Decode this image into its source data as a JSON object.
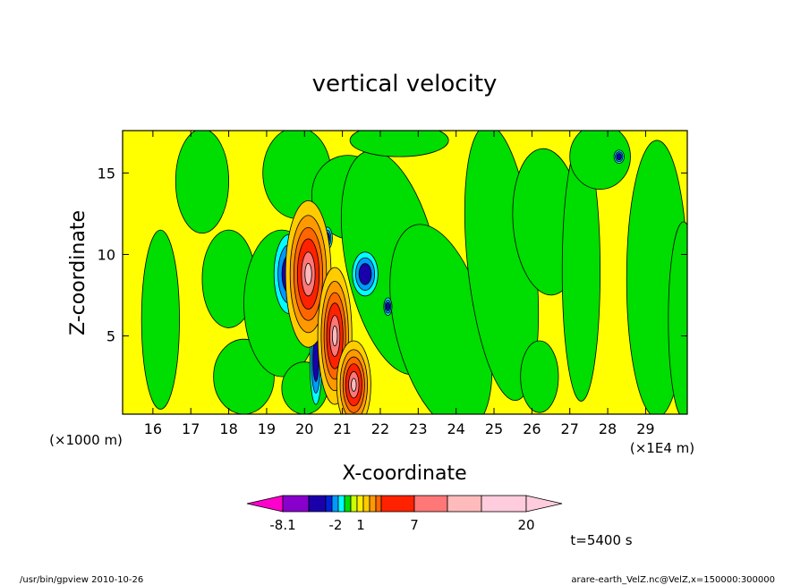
{
  "chart_data": {
    "type": "heatmap",
    "title": "vertical velocity",
    "xlabel": "X-coordinate",
    "ylabel": "Z-coordinate",
    "x_units_left": "(×1000 m)",
    "x_units_right": "(×1E4 m)",
    "xlim": [
      15.2,
      30.1
    ],
    "ylim": [
      0.2,
      17.6
    ],
    "x_ticks": [
      16,
      17,
      18,
      19,
      20,
      21,
      22,
      23,
      24,
      25,
      26,
      27,
      28,
      29
    ],
    "y_ticks": [
      5,
      10,
      15
    ],
    "background_color": "#ffff00",
    "features": [
      {
        "type": "green",
        "x": 16.2,
        "y": 6.0,
        "rx": 0.5,
        "ry": 5.5,
        "rot": 0
      },
      {
        "type": "green",
        "x": 17.3,
        "y": 14.5,
        "rx": 0.7,
        "ry": 3.2,
        "rot": 0
      },
      {
        "type": "green",
        "x": 18.0,
        "y": 8.5,
        "rx": 0.7,
        "ry": 3.0,
        "rot": 0
      },
      {
        "type": "green",
        "x": 18.4,
        "y": 2.5,
        "rx": 0.8,
        "ry": 2.3,
        "rot": 0
      },
      {
        "type": "green",
        "x": 19.4,
        "y": 7.0,
        "rx": 1.0,
        "ry": 4.5,
        "rot": 0
      },
      {
        "type": "green",
        "x": 19.8,
        "y": 15.0,
        "rx": 0.9,
        "ry": 2.8,
        "rot": 0
      },
      {
        "type": "green",
        "x": 20.0,
        "y": 1.8,
        "rx": 0.6,
        "ry": 1.6,
        "rot": 0
      },
      {
        "type": "green",
        "x": 21.2,
        "y": 13.5,
        "rx": 1.0,
        "ry": 2.6,
        "rot": -15
      },
      {
        "type": "green",
        "x": 22.3,
        "y": 9.5,
        "rx": 1.2,
        "ry": 7.0,
        "rot": -12
      },
      {
        "type": "green",
        "x": 23.6,
        "y": 5.5,
        "rx": 1.2,
        "ry": 6.5,
        "rot": -14
      },
      {
        "type": "green",
        "x": 22.5,
        "y": 17.0,
        "rx": 1.3,
        "ry": 1.0,
        "rot": 0
      },
      {
        "type": "green",
        "x": 25.2,
        "y": 9.5,
        "rx": 0.9,
        "ry": 8.5,
        "rot": -6
      },
      {
        "type": "green",
        "x": 26.2,
        "y": 2.5,
        "rx": 0.5,
        "ry": 2.2,
        "rot": 0
      },
      {
        "type": "green",
        "x": 26.4,
        "y": 12.0,
        "rx": 0.9,
        "ry": 4.5,
        "rot": -4
      },
      {
        "type": "green",
        "x": 27.3,
        "y": 9.0,
        "rx": 0.5,
        "ry": 8.0,
        "rot": 0
      },
      {
        "type": "green",
        "x": 27.8,
        "y": 16.0,
        "rx": 0.8,
        "ry": 2.0,
        "rot": 0
      },
      {
        "type": "green",
        "x": 29.3,
        "y": 8.5,
        "rx": 0.8,
        "ry": 8.5,
        "rot": 0
      },
      {
        "type": "green",
        "x": 30.0,
        "y": 6.0,
        "rx": 0.4,
        "ry": 6.0,
        "rot": 0
      },
      {
        "type": "cold",
        "x": 19.6,
        "y": 8.8,
        "rx": 0.3,
        "ry": 1.8,
        "rot": 0
      },
      {
        "type": "cold",
        "x": 21.6,
        "y": 8.8,
        "rx": 0.25,
        "ry": 1.0,
        "rot": 0
      },
      {
        "type": "cold",
        "x": 20.3,
        "y": 3.5,
        "rx": 0.12,
        "ry": 2.0,
        "rot": 0
      },
      {
        "type": "cold",
        "x": 21.1,
        "y": 3.0,
        "rx": 0.1,
        "ry": 1.8,
        "rot": 0
      },
      {
        "type": "cold",
        "x": 20.6,
        "y": 11.0,
        "rx": 0.1,
        "ry": 0.5,
        "rot": 0
      },
      {
        "type": "cold",
        "x": 22.2,
        "y": 6.8,
        "rx": 0.08,
        "ry": 0.4,
        "rot": 0
      },
      {
        "type": "cold",
        "x": 28.3,
        "y": 16.0,
        "rx": 0.1,
        "ry": 0.3,
        "rot": 0
      },
      {
        "type": "warm",
        "x": 20.1,
        "y": 8.8,
        "rx": 0.4,
        "ry": 3.0,
        "rot": 0
      },
      {
        "type": "warm",
        "x": 20.8,
        "y": 5.0,
        "rx": 0.3,
        "ry": 2.8,
        "rot": 0
      },
      {
        "type": "warm",
        "x": 21.3,
        "y": 2.0,
        "rx": 0.3,
        "ry": 1.8,
        "rot": 0
      }
    ],
    "colorbar": {
      "label_values": [
        "-8.1",
        "-2",
        "1",
        "7",
        "20"
      ],
      "colors": [
        "#ff00cc",
        "#8800cc",
        "#1a00aa",
        "#0022dd",
        "#0099ff",
        "#00ffff",
        "#00dd00",
        "#ccff00",
        "#ffee00",
        "#ffcc00",
        "#ff9900",
        "#ff6600",
        "#ff2200",
        "#ff7777",
        "#ffbbbb",
        "#ffccdd"
      ]
    },
    "time_label": "t=5400 s"
  },
  "footer": {
    "left": "/usr/bin/gpview  2010-10-26",
    "right": "arare-earth_VelZ.nc@VelZ,x=150000:300000"
  }
}
